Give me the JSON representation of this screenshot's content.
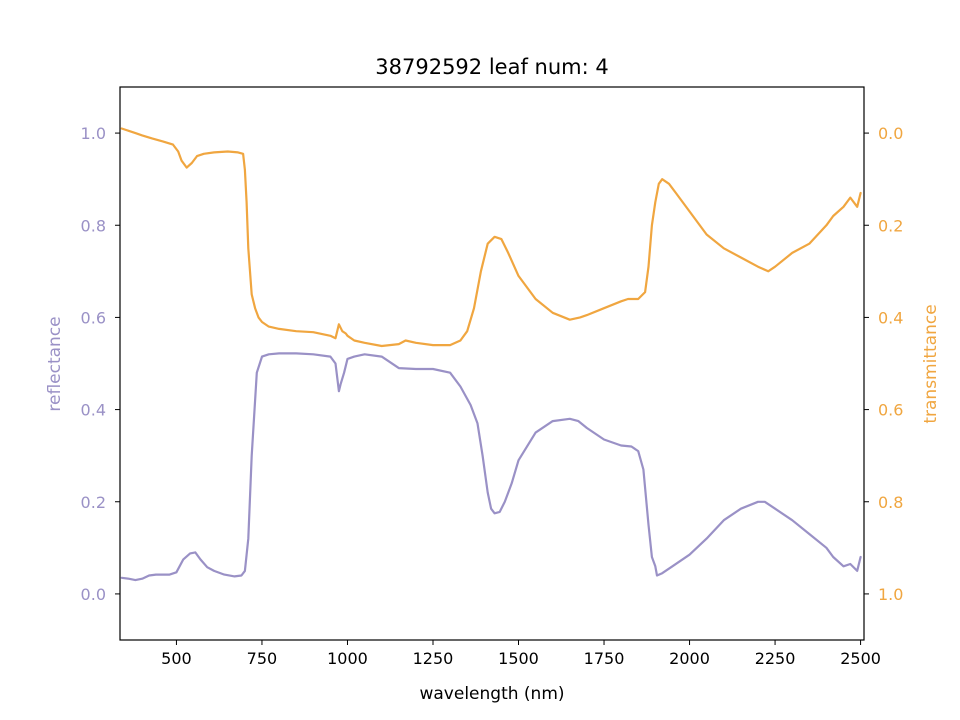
{
  "chart_data": {
    "type": "line",
    "title": "38792592 leaf num: 4",
    "xlabel": "wavelength (nm)",
    "ylabel_left": "reflectance",
    "ylabel_right": "transmittance",
    "xlim": [
      335,
      2510
    ],
    "ylim_left": [
      -0.1,
      1.1
    ],
    "ylim_right": [
      1.1,
      -0.1
    ],
    "right_axis_inverted": true,
    "x_ticks": [
      500,
      750,
      1000,
      1250,
      1500,
      1750,
      2000,
      2250,
      2500
    ],
    "left_ticks": [
      0.0,
      0.2,
      0.4,
      0.6,
      0.8,
      1.0
    ],
    "right_ticks": [
      0.0,
      0.2,
      0.4,
      0.6,
      0.8,
      1.0
    ],
    "grid": false,
    "legend": "none",
    "colors": {
      "reflectance": "#9a91c6",
      "transmittance": "#f0a640"
    },
    "series": [
      {
        "name": "reflectance",
        "axis": "left",
        "x": [
          340,
          360,
          380,
          400,
          420,
          440,
          460,
          480,
          500,
          520,
          540,
          555,
          570,
          590,
          610,
          640,
          670,
          690,
          700,
          710,
          720,
          735,
          750,
          770,
          800,
          850,
          900,
          950,
          965,
          975,
          980,
          990,
          1000,
          1020,
          1050,
          1100,
          1150,
          1200,
          1250,
          1300,
          1330,
          1360,
          1380,
          1395,
          1410,
          1420,
          1430,
          1445,
          1460,
          1480,
          1500,
          1550,
          1600,
          1650,
          1675,
          1700,
          1750,
          1800,
          1830,
          1850,
          1865,
          1880,
          1890,
          1900,
          1905,
          1920,
          1950,
          2000,
          2050,
          2100,
          2150,
          2200,
          2220,
          2250,
          2300,
          2350,
          2400,
          2420,
          2450,
          2470,
          2490,
          2500
        ],
        "y": [
          0.035,
          0.033,
          0.03,
          0.033,
          0.04,
          0.042,
          0.042,
          0.042,
          0.047,
          0.075,
          0.088,
          0.09,
          0.075,
          0.058,
          0.05,
          0.042,
          0.038,
          0.04,
          0.05,
          0.12,
          0.3,
          0.48,
          0.515,
          0.52,
          0.522,
          0.522,
          0.52,
          0.515,
          0.5,
          0.44,
          0.455,
          0.48,
          0.51,
          0.515,
          0.52,
          0.515,
          0.49,
          0.488,
          0.488,
          0.48,
          0.45,
          0.41,
          0.37,
          0.3,
          0.22,
          0.185,
          0.175,
          0.178,
          0.2,
          0.24,
          0.29,
          0.35,
          0.375,
          0.38,
          0.375,
          0.36,
          0.335,
          0.322,
          0.32,
          0.31,
          0.27,
          0.15,
          0.08,
          0.06,
          0.04,
          0.045,
          0.06,
          0.085,
          0.12,
          0.16,
          0.185,
          0.2,
          0.2,
          0.185,
          0.16,
          0.13,
          0.1,
          0.08,
          0.06,
          0.065,
          0.05,
          0.08
        ]
      },
      {
        "name": "transmittance",
        "axis": "right",
        "x": [
          340,
          360,
          380,
          400,
          430,
          460,
          490,
          505,
          515,
          530,
          545,
          560,
          580,
          610,
          650,
          680,
          695,
          700,
          705,
          710,
          720,
          730,
          740,
          750,
          770,
          800,
          850,
          900,
          950,
          965,
          975,
          985,
          995,
          1000,
          1020,
          1050,
          1100,
          1150,
          1170,
          1200,
          1250,
          1300,
          1330,
          1350,
          1370,
          1390,
          1410,
          1430,
          1450,
          1470,
          1500,
          1550,
          1600,
          1650,
          1680,
          1700,
          1750,
          1800,
          1820,
          1850,
          1870,
          1880,
          1890,
          1900,
          1910,
          1920,
          1940,
          1960,
          2000,
          2050,
          2100,
          2150,
          2200,
          2230,
          2250,
          2300,
          2350,
          2400,
          2420,
          2450,
          2470,
          2490,
          2500
        ],
        "y": [
          -0.01,
          -0.005,
          0.0,
          0.005,
          0.012,
          0.018,
          0.025,
          0.04,
          0.06,
          0.075,
          0.065,
          0.05,
          0.045,
          0.042,
          0.04,
          0.042,
          0.045,
          0.08,
          0.15,
          0.25,
          0.35,
          0.38,
          0.4,
          0.41,
          0.42,
          0.425,
          0.43,
          0.432,
          0.44,
          0.445,
          0.415,
          0.43,
          0.435,
          0.44,
          0.45,
          0.455,
          0.462,
          0.458,
          0.45,
          0.455,
          0.46,
          0.46,
          0.45,
          0.43,
          0.38,
          0.3,
          0.24,
          0.225,
          0.23,
          0.26,
          0.31,
          0.36,
          0.39,
          0.405,
          0.4,
          0.395,
          0.38,
          0.365,
          0.36,
          0.36,
          0.345,
          0.29,
          0.2,
          0.15,
          0.11,
          0.1,
          0.11,
          0.13,
          0.17,
          0.22,
          0.25,
          0.27,
          0.29,
          0.3,
          0.29,
          0.26,
          0.24,
          0.2,
          0.18,
          0.16,
          0.14,
          0.16,
          0.13
        ]
      }
    ]
  }
}
